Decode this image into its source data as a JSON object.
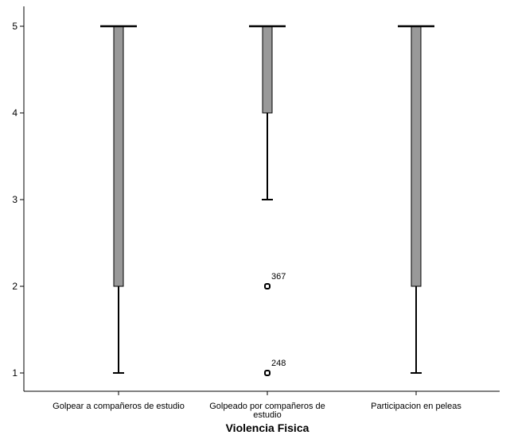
{
  "chart_data": {
    "type": "boxplot",
    "xlabel": "Violencia Fisica",
    "ylabel": "",
    "ylim": [
      0.8,
      5.2
    ],
    "yticks": [
      1,
      2,
      3,
      4,
      5
    ],
    "grid": false,
    "categories": [
      "Golpear a compañeros de estudio",
      "Golpeado por compañeros de estudio",
      "Participacion en peleas"
    ],
    "category_label_lines": [
      [
        "Golpear a compañeros de estudio"
      ],
      [
        "Golpeado por compañeros de",
        "estudio"
      ],
      [
        "Participacion en peleas"
      ]
    ],
    "boxes": [
      {
        "category": "Golpear a compañeros de estudio",
        "min": 1,
        "q1": 2,
        "median": 5,
        "q3": 5,
        "max": 5,
        "outliers": []
      },
      {
        "category": "Golpeado por compañeros de estudio",
        "min": 3,
        "q1": 4,
        "median": 5,
        "q3": 5,
        "max": 5,
        "outliers": [
          {
            "value": 2,
            "label": "367"
          },
          {
            "value": 1,
            "label": "248"
          }
        ]
      },
      {
        "category": "Participacion en peleas",
        "min": 1,
        "q1": 2,
        "median": 5,
        "q3": 5,
        "max": 5,
        "outliers": []
      }
    ],
    "colors": {
      "box_fill": "#999999",
      "line": "#000000",
      "axis": "#000000",
      "background": "#ffffff"
    }
  }
}
